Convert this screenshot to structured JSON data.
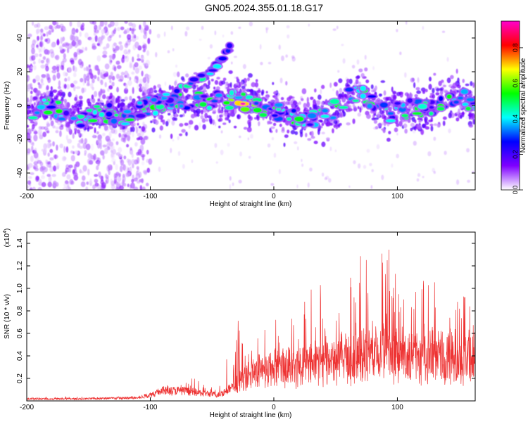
{
  "title": "GN05.2024.355.01.18.G17",
  "chart_data": [
    {
      "type": "heatmap",
      "xlabel": "Height of straight line (km)",
      "ylabel": "Frequency (Hz)",
      "xlim": [
        -200,
        163
      ],
      "ylim": [
        -50,
        50
      ],
      "xticks": [
        -200,
        -100,
        0,
        100
      ],
      "yticks": [
        -40,
        -20,
        0,
        20,
        40
      ],
      "colorbar": {
        "label": "Normalized spectral amplitude",
        "range": [
          0,
          0.95
        ],
        "ticks": [
          "0.0",
          "0.2",
          "0.4",
          "0.6",
          "0.8"
        ],
        "tick_values": [
          0,
          0.2,
          0.4,
          0.6,
          0.8
        ],
        "colors": [
          "#ffffff",
          "#7f00ff",
          "#0000ff",
          "#00ffff",
          "#00ff00",
          "#ffff00",
          "#ff0000",
          "#ff00cc"
        ]
      },
      "ridge_points": [
        {
          "x": -195,
          "y": -3
        },
        {
          "x": -180,
          "y": 0
        },
        {
          "x": -160,
          "y": -8
        },
        {
          "x": -140,
          "y": -4
        },
        {
          "x": -120,
          "y": -6
        },
        {
          "x": -100,
          "y": 0
        },
        {
          "x": -80,
          "y": 2
        },
        {
          "x": -60,
          "y": 3
        },
        {
          "x": -40,
          "y": 4
        },
        {
          "x": -25,
          "y": 2
        },
        {
          "x": -10,
          "y": -2
        },
        {
          "x": 10,
          "y": -4
        },
        {
          "x": 30,
          "y": -8
        },
        {
          "x": 50,
          "y": -2
        },
        {
          "x": 70,
          "y": 10
        },
        {
          "x": 90,
          "y": -5
        },
        {
          "x": 110,
          "y": -2
        },
        {
          "x": 130,
          "y": 0
        },
        {
          "x": 150,
          "y": 5
        },
        {
          "x": 162,
          "y": 0
        }
      ],
      "secondary_branch": [
        {
          "x": -110,
          "y": 0
        },
        {
          "x": -90,
          "y": 5
        },
        {
          "x": -70,
          "y": 12
        },
        {
          "x": -50,
          "y": 20
        },
        {
          "x": -35,
          "y": 36
        }
      ],
      "peak": {
        "x": -25,
        "y": 1,
        "value": 0.95
      }
    },
    {
      "type": "line",
      "xlabel": "Height of straight line (km)",
      "ylabel": "SNR (10 * v/v)",
      "yscale_note": "(x10",
      "yscale_exp": "4",
      "xlim": [
        -200,
        163
      ],
      "ylim": [
        0,
        1.5
      ],
      "xticks": [
        -200,
        -100,
        0,
        100
      ],
      "yticks": [
        0.2,
        0.4,
        0.6,
        0.8,
        1.0,
        1.2,
        1.4
      ],
      "color": "#ee3333",
      "envelope": {
        "x": [
          -200,
          -160,
          -110,
          -100,
          -90,
          -75,
          -60,
          -45,
          -30,
          -20,
          -10,
          0,
          10,
          20,
          30,
          40,
          50,
          60,
          70,
          80,
          90,
          100,
          110,
          120,
          130,
          140,
          150,
          163
        ],
        "base": [
          0.02,
          0.02,
          0.03,
          0.06,
          0.1,
          0.1,
          0.08,
          0.06,
          0.15,
          0.25,
          0.3,
          0.32,
          0.32,
          0.33,
          0.35,
          0.35,
          0.38,
          0.38,
          0.4,
          0.42,
          0.45,
          0.42,
          0.4,
          0.4,
          0.42,
          0.4,
          0.38,
          0.45
        ],
        "peak": [
          0.04,
          0.04,
          0.05,
          0.12,
          0.18,
          0.22,
          0.18,
          0.12,
          0.75,
          0.5,
          0.65,
          0.8,
          0.9,
          1.0,
          1.05,
          1.2,
          1.1,
          1.15,
          1.25,
          1.2,
          1.48,
          1.1,
          1.0,
          1.05,
          1.2,
          1.0,
          1.1,
          0.8
        ]
      }
    }
  ]
}
